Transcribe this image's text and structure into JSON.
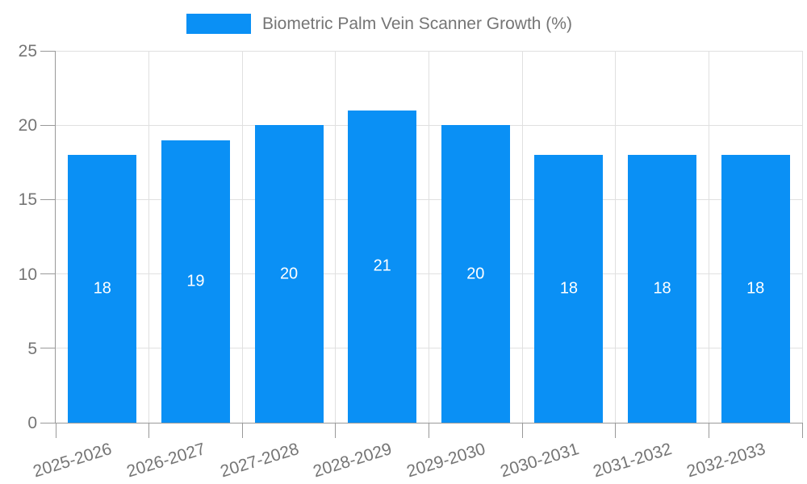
{
  "chart_data": {
    "type": "bar",
    "legend": "Biometric Palm Vein Scanner Growth (%)",
    "categories": [
      "2025-2026",
      "2026-2027",
      "2027-2028",
      "2028-2029",
      "2029-2030",
      "2030-2031",
      "2031-2032",
      "2032-2033"
    ],
    "values": [
      18,
      19,
      20,
      21,
      20,
      18,
      18,
      18
    ],
    "ylim": [
      0,
      25
    ],
    "yticks": [
      0,
      5,
      10,
      15,
      20,
      25
    ],
    "grid": true,
    "legend_position": "top-center",
    "x_label_rotation": -17,
    "colors": {
      "bar": "#0a90f5",
      "grid": "#e0e0e0",
      "axis": "#999999",
      "text": "#757575",
      "value_label": "#ffffff",
      "background": "#ffffff"
    }
  }
}
